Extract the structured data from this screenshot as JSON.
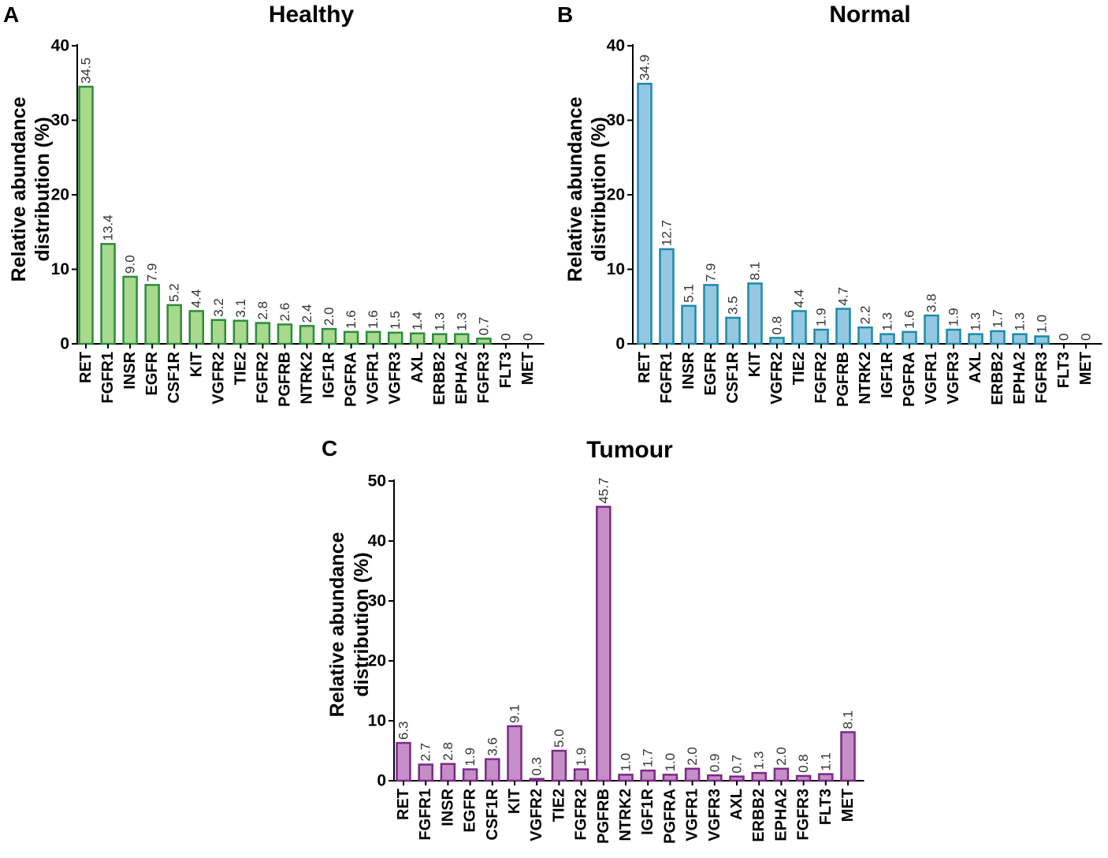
{
  "chart_data": [
    {
      "panel": "A",
      "type": "bar",
      "title": "Healthy",
      "ylabel_line1": "Relative abundance",
      "ylabel_line2": "distribution (%)",
      "xlabel": "",
      "ylim": [
        0,
        40
      ],
      "yticks": [
        0,
        10,
        20,
        30,
        40
      ],
      "fill": "#a8d98c",
      "stroke": "#2e8b3e",
      "categories": [
        "RET",
        "FGFR1",
        "INSR",
        "EGFR",
        "CSF1R",
        "KIT",
        "VGFR2",
        "TIE2",
        "FGFR2",
        "PGFRB",
        "NTRK2",
        "IGF1R",
        "PGFRA",
        "VGFR1",
        "VGFR3",
        "AXL",
        "ERBB2",
        "EPHA2",
        "FGFR3",
        "FLT3",
        "MET"
      ],
      "values": [
        34.5,
        13.4,
        9.0,
        7.9,
        5.2,
        4.4,
        3.2,
        3.1,
        2.8,
        2.6,
        2.4,
        2.0,
        1.6,
        1.6,
        1.5,
        1.4,
        1.3,
        1.3,
        0.7,
        0,
        0
      ],
      "labels": [
        "34.5",
        "13.4",
        "9.0",
        "7.9",
        "5.2",
        "4.4",
        "3.2",
        "3.1",
        "2.8",
        "2.6",
        "2.4",
        "2.0",
        "1.6",
        "1.6",
        "1.5",
        "1.4",
        "1.3",
        "1.3",
        "0.7",
        "0",
        "0"
      ]
    },
    {
      "panel": "B",
      "type": "bar",
      "title": "Normal",
      "ylabel_line1": "Relative abundance",
      "ylabel_line2": "distribution (%)",
      "xlabel": "",
      "ylim": [
        0,
        40
      ],
      "yticks": [
        0,
        10,
        20,
        30,
        40
      ],
      "fill": "#94c8e2",
      "stroke": "#1e8aa8",
      "categories": [
        "RET",
        "FGFR1",
        "INSR",
        "EGFR",
        "CSF1R",
        "KIT",
        "VGFR2",
        "TIE2",
        "FGFR2",
        "PGFRB",
        "NTRK2",
        "IGF1R",
        "PGFRA",
        "VGFR1",
        "VGFR3",
        "AXL",
        "ERBB2",
        "EPHA2",
        "FGFR3",
        "FLT3",
        "MET"
      ],
      "values": [
        34.9,
        12.7,
        5.1,
        7.9,
        3.5,
        8.1,
        0.8,
        4.4,
        1.9,
        4.7,
        2.2,
        1.3,
        1.6,
        3.8,
        1.9,
        1.3,
        1.7,
        1.3,
        1.0,
        0,
        0
      ],
      "labels": [
        "34.9",
        "12.7",
        "5.1",
        "7.9",
        "3.5",
        "8.1",
        "0.8",
        "4.4",
        "1.9",
        "4.7",
        "2.2",
        "1.3",
        "1.6",
        "3.8",
        "1.9",
        "1.3",
        "1.7",
        "1.3",
        "1.0",
        "0",
        "0"
      ]
    },
    {
      "panel": "C",
      "type": "bar",
      "title": "Tumour",
      "ylabel_line1": "Relative abundance",
      "ylabel_line2": "distribution (%)",
      "xlabel": "",
      "ylim": [
        0,
        50
      ],
      "yticks": [
        0,
        10,
        20,
        30,
        40,
        50
      ],
      "fill": "#c58ec8",
      "stroke": "#7a2a86",
      "categories": [
        "RET",
        "FGFR1",
        "INSR",
        "EGFR",
        "CSF1R",
        "KIT",
        "VGFR2",
        "TIE2",
        "FGFR2",
        "PGFRB",
        "NTRK2",
        "IGF1R",
        "PGFRA",
        "VGFR1",
        "VGFR3",
        "AXL",
        "ERBB2",
        "EPHA2",
        "FGFR3",
        "FLT3",
        "MET"
      ],
      "values": [
        6.3,
        2.7,
        2.8,
        1.9,
        3.6,
        9.1,
        0.3,
        5.0,
        1.9,
        45.7,
        1.0,
        1.7,
        1.0,
        2.0,
        0.9,
        0.7,
        1.3,
        2.0,
        0.8,
        1.1,
        8.1
      ],
      "labels": [
        "6.3",
        "2.7",
        "2.8",
        "1.9",
        "3.6",
        "9.1",
        "0.3",
        "5.0",
        "1.9",
        "45.7",
        "1.0",
        "1.7",
        "1.0",
        "2.0",
        "0.9",
        "0.7",
        "1.3",
        "2.0",
        "0.8",
        "1.1",
        "8.1"
      ]
    }
  ]
}
